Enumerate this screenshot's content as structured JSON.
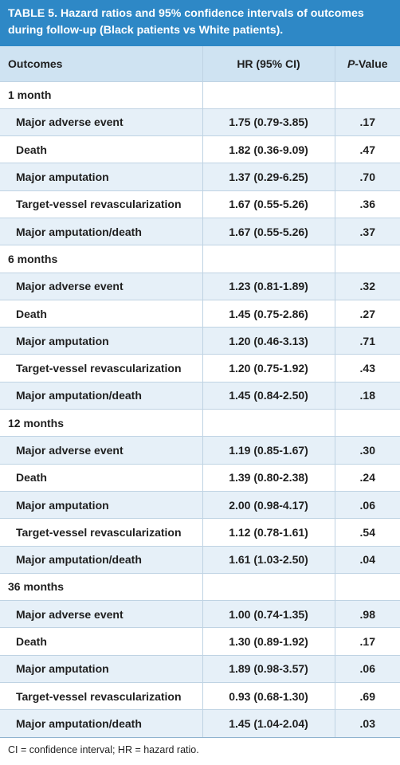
{
  "table_title": "TABLE 5. Hazard ratios and 95% confidence intervals of outcomes during follow-up (Black patients vs White patients).",
  "header": {
    "outcomes": "Outcomes",
    "hr": "HR (95% CI)",
    "p_letter": "P",
    "p_rest": "-Value"
  },
  "rows": [
    {
      "label": "1 month",
      "hr": "",
      "p": "",
      "group": true
    },
    {
      "label": "Major adverse event",
      "hr": "1.75 (0.79-3.85)",
      "p": ".17"
    },
    {
      "label": "Death",
      "hr": "1.82 (0.36-9.09)",
      "p": ".47"
    },
    {
      "label": "Major amputation",
      "hr": "1.37 (0.29-6.25)",
      "p": ".70"
    },
    {
      "label": "Target-vessel revascularization",
      "hr": "1.67 (0.55-5.26)",
      "p": ".36"
    },
    {
      "label": "Major amputation/death",
      "hr": "1.67 (0.55-5.26)",
      "p": ".37"
    },
    {
      "label": "6 months",
      "hr": "",
      "p": "",
      "group": true
    },
    {
      "label": "Major adverse event",
      "hr": "1.23 (0.81-1.89)",
      "p": ".32"
    },
    {
      "label": "Death",
      "hr": "1.45 (0.75-2.86)",
      "p": ".27"
    },
    {
      "label": "Major amputation",
      "hr": "1.20 (0.46-3.13)",
      "p": ".71"
    },
    {
      "label": "Target-vessel revascularization",
      "hr": "1.20 (0.75-1.92)",
      "p": ".43"
    },
    {
      "label": "Major amputation/death",
      "hr": "1.45 (0.84-2.50)",
      "p": ".18"
    },
    {
      "label": "12 months",
      "hr": "",
      "p": "",
      "group": true
    },
    {
      "label": "Major adverse event",
      "hr": "1.19 (0.85-1.67)",
      "p": ".30"
    },
    {
      "label": "Death",
      "hr": "1.39 (0.80-2.38)",
      "p": ".24"
    },
    {
      "label": "Major amputation",
      "hr": "2.00 (0.98-4.17)",
      "p": ".06"
    },
    {
      "label": "Target-vessel revascularization",
      "hr": "1.12 (0.78-1.61)",
      "p": ".54"
    },
    {
      "label": "Major amputation/death",
      "hr": "1.61 (1.03-2.50)",
      "p": ".04"
    },
    {
      "label": "36 months",
      "hr": "",
      "p": "",
      "group": true
    },
    {
      "label": "Major adverse event",
      "hr": "1.00 (0.74-1.35)",
      "p": ".98"
    },
    {
      "label": "Death",
      "hr": "1.30 (0.89-1.92)",
      "p": ".17"
    },
    {
      "label": "Major amputation",
      "hr": "1.89 (0.98-3.57)",
      "p": ".06"
    },
    {
      "label": "Target-vessel revascularization",
      "hr": "0.93 (0.68-1.30)",
      "p": ".69"
    },
    {
      "label": "Major amputation/death",
      "hr": "1.45 (1.04-2.04)",
      "p": ".03"
    }
  ],
  "footnote": "CI = confidence interval; HR = hazard ratio.",
  "colors": {
    "title_bg": "#2e88c6",
    "header_bg": "#cfe3f2",
    "stripe_bg": "#e6f0f8"
  }
}
